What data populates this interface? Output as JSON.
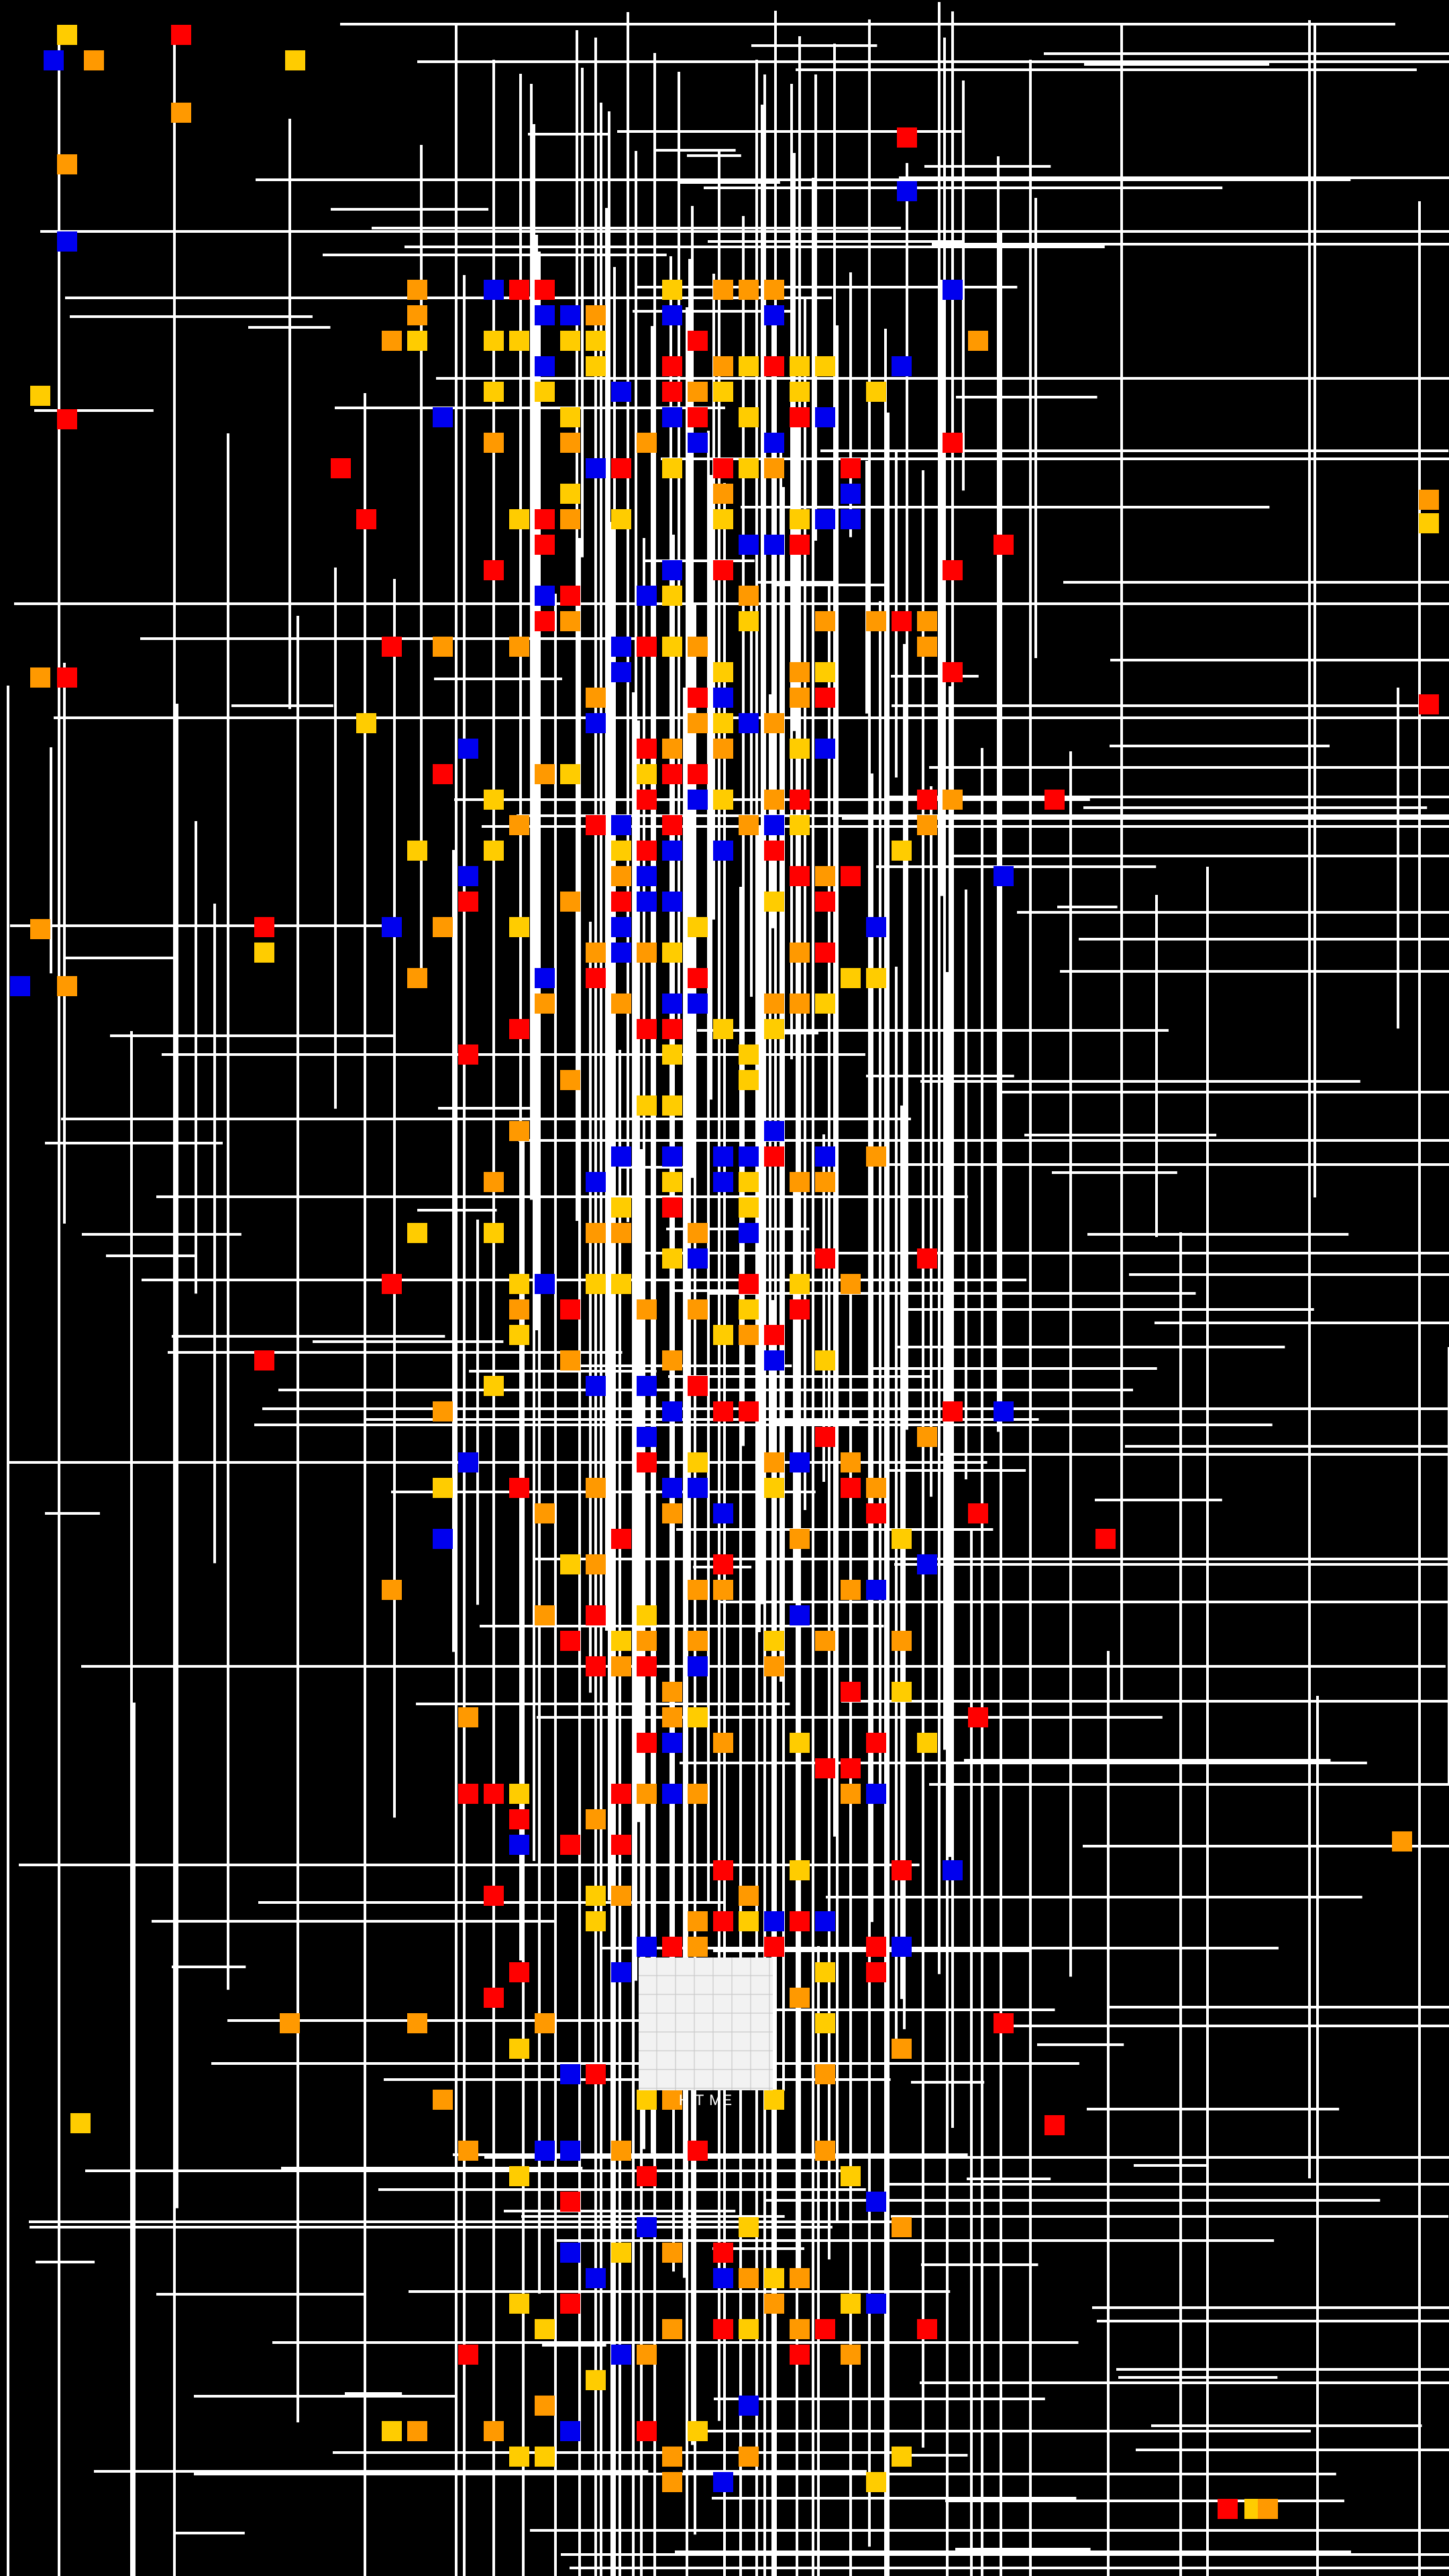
{
  "game": {
    "target_label": "HIT ME"
  },
  "palette": {
    "background": "#000000",
    "wire": "#ffffff",
    "target": "#f2f2f2",
    "node_colors": [
      "#ff0000",
      "#ff9900",
      "#ffcc00",
      "#0000ee"
    ]
  }
}
